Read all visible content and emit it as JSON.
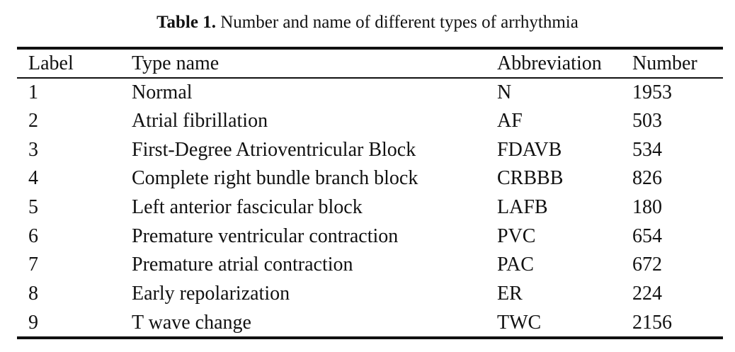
{
  "caption": {
    "label": "Table 1.",
    "text": "Number and name of different types of arrhythmia"
  },
  "table": {
    "headers": [
      "Label",
      "Type name",
      "Abbreviation",
      "Number"
    ],
    "rows": [
      [
        "1",
        "Normal",
        "N",
        "1953"
      ],
      [
        "2",
        "Atrial fibrillation",
        "AF",
        "503"
      ],
      [
        "3",
        "First-Degree Atrioventricular Block",
        "FDAVB",
        "534"
      ],
      [
        "4",
        "Complete right bundle branch block",
        "CRBBB",
        "826"
      ],
      [
        "5",
        "Left anterior fascicular block",
        "LAFB",
        "180"
      ],
      [
        "6",
        "Premature ventricular contraction",
        "PVC",
        "654"
      ],
      [
        "7",
        "Premature atrial contraction",
        "PAC",
        "672"
      ],
      [
        "8",
        "Early repolarization",
        "ER",
        "224"
      ],
      [
        "9",
        "T wave change",
        "TWC",
        "2156"
      ]
    ]
  }
}
